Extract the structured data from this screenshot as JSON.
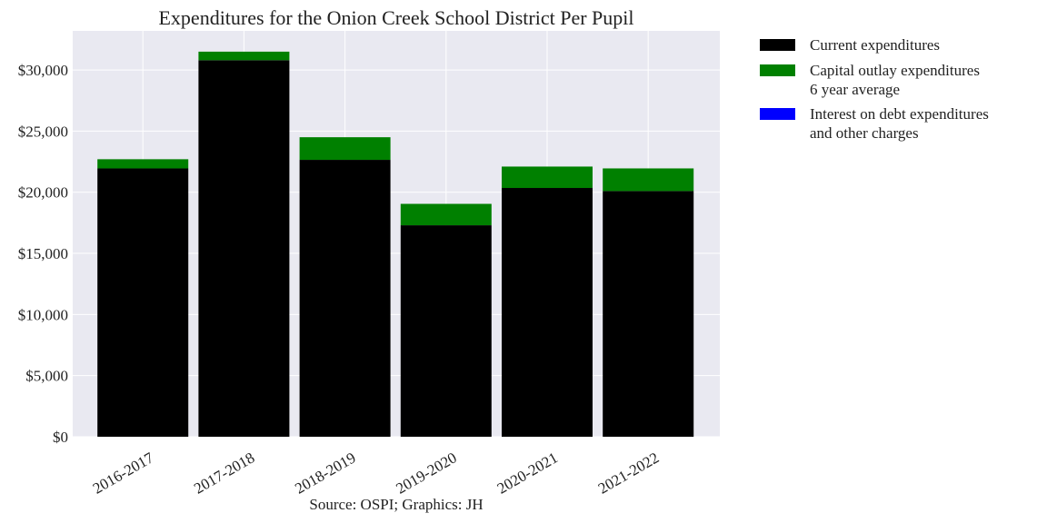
{
  "chart_data": {
    "type": "bar",
    "stacked": true,
    "title": "Expenditures for the Onion Creek School District Per Pupil",
    "xlabel": "",
    "ylabel": "",
    "caption": "Source: OSPI; Graphics: JH",
    "categories": [
      "2016-2017",
      "2017-2018",
      "2018-2019",
      "2019-2020",
      "2020-2021",
      "2021-2022"
    ],
    "series": [
      {
        "name": "Current expenditures",
        "color": "#000000",
        "values": [
          21950,
          30800,
          22650,
          17300,
          20350,
          20100
        ]
      },
      {
        "name": "Capital outlay expenditures\n6 year average",
        "color": "#008000",
        "values": [
          750,
          700,
          1850,
          1750,
          1750,
          1850
        ]
      },
      {
        "name": "Interest on debt expenditures\nand other charges",
        "color": "#0000ff",
        "values": [
          0,
          0,
          0,
          0,
          0,
          0
        ]
      }
    ],
    "ylim": [
      0,
      33200
    ],
    "yticks": [
      0,
      5000,
      10000,
      15000,
      20000,
      25000,
      30000
    ],
    "ytick_labels": [
      "$0",
      "$5,000",
      "$10,000",
      "$15,000",
      "$20,000",
      "$25,000",
      "$30,000"
    ],
    "grid": true,
    "legend_position": "outside-right-top",
    "background_color": "#e9e9f1"
  }
}
